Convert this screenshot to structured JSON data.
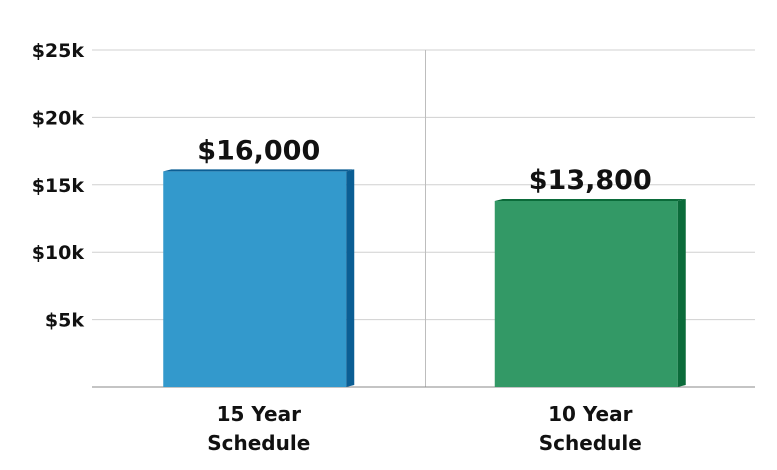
{
  "chart_data": {
    "type": "bar",
    "categories": [
      [
        "15 Year",
        "Schedule"
      ],
      [
        "10 Year",
        "Schedule"
      ]
    ],
    "values": [
      16000,
      13800
    ],
    "data_labels": [
      "$16,000",
      "$13,800"
    ],
    "y_ticks": [
      {
        "value": 5000,
        "label": "$5k"
      },
      {
        "value": 10000,
        "label": "$10k"
      },
      {
        "value": 15000,
        "label": "$15k"
      },
      {
        "value": 20000,
        "label": "$20k"
      },
      {
        "value": 25000,
        "label": "$25k"
      }
    ],
    "ylim": [
      0,
      25000
    ],
    "colors": [
      {
        "face": "#3399cc",
        "side": "#0b5e94"
      },
      {
        "face": "#339966",
        "side": "#0b6b3a"
      }
    ],
    "grid": true,
    "title": "",
    "xlabel": "",
    "ylabel": ""
  }
}
